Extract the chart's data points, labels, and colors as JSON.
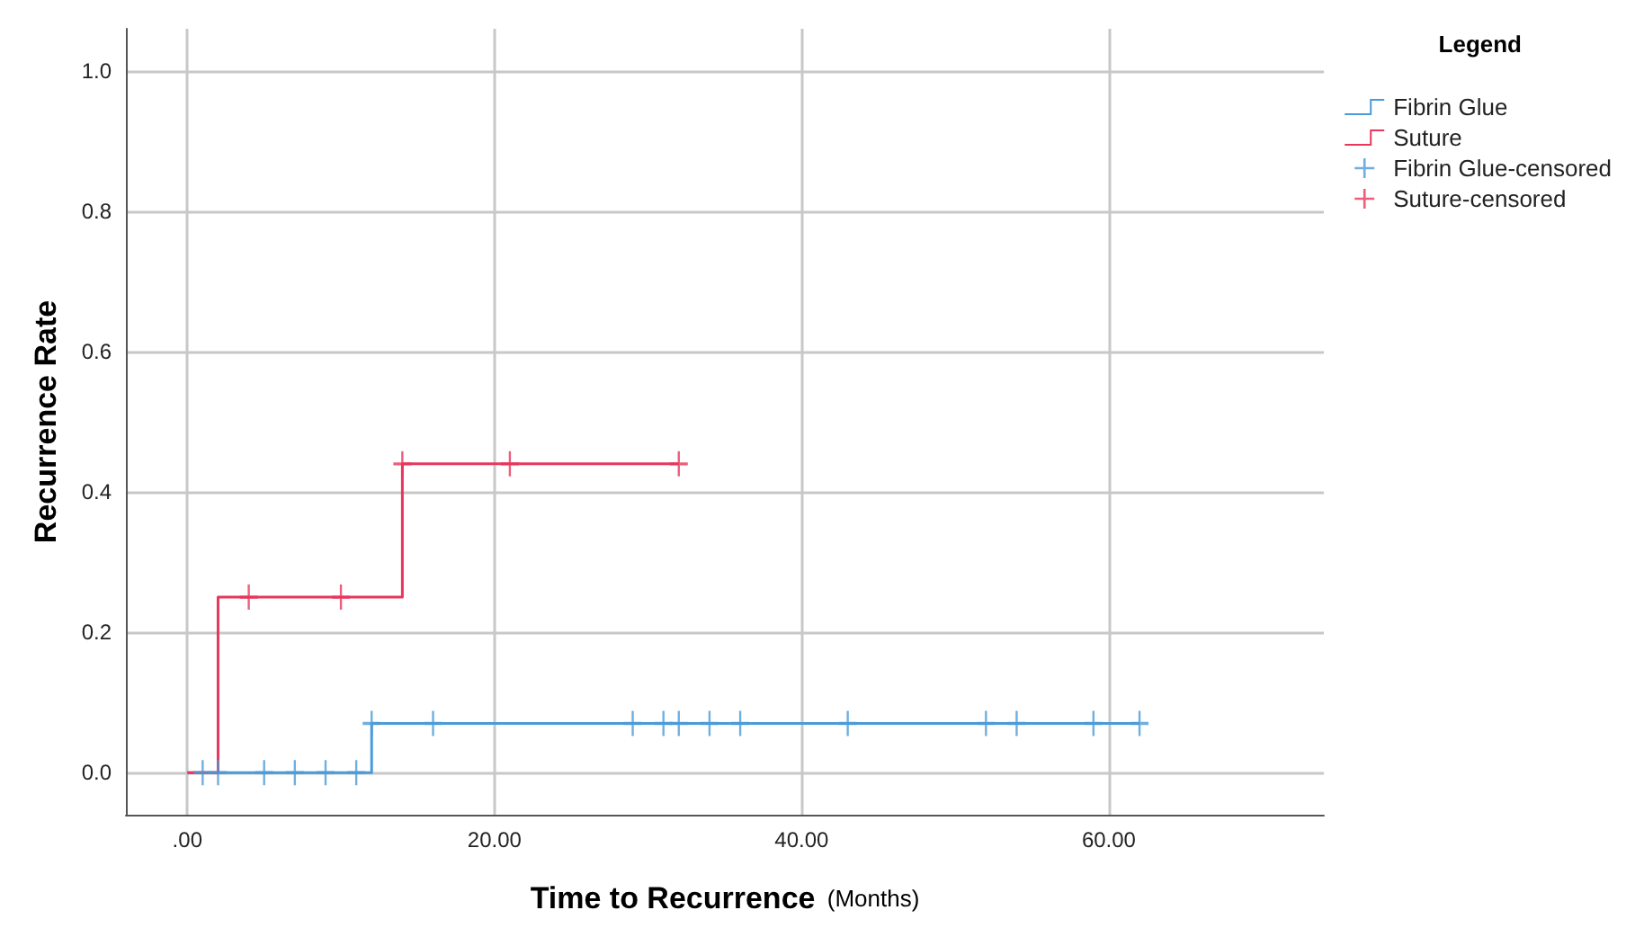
{
  "chart_data": {
    "type": "step",
    "xlabel": "Time to Recurrence (Months)",
    "ylabel": "Recurrence Rate",
    "legend_title": "Legend",
    "xlim": [
      -4,
      74
    ],
    "ylim": [
      -0.06,
      1.06
    ],
    "xticks": [
      {
        "value": 0,
        "label": ".00"
      },
      {
        "value": 20,
        "label": "20.00"
      },
      {
        "value": 40,
        "label": "40.00"
      },
      {
        "value": 60,
        "label": "60.00"
      }
    ],
    "yticks": [
      {
        "value": 0,
        "label": "0.0"
      },
      0.2,
      0.4,
      0.6,
      0.8,
      {
        "value": 1,
        "label": "1.0"
      }
    ],
    "grid": true,
    "legend": "top right",
    "line_style": "solid",
    "marker": "none",
    "series": [
      {
        "name": "Fibrin Glue",
        "color": "#4a9bd8",
        "x": [
          0,
          12,
          62
        ],
        "values": [
          0,
          0.07,
          0.07
        ]
      },
      {
        "name": "Suture",
        "color": "#e8365d",
        "x": [
          0,
          2,
          14,
          32
        ],
        "values": [
          0,
          0.25,
          0.44,
          0.44
        ]
      },
      {
        "name": "Fibrin Glue-censored",
        "type": "scatter",
        "marker": "cross",
        "color": "#4a9bd8",
        "x": [
          1,
          2,
          5,
          7,
          9,
          11,
          12,
          16,
          29,
          31,
          32,
          34,
          36,
          43,
          52,
          54,
          59,
          62
        ],
        "values": [
          0,
          0,
          0,
          0,
          0,
          0,
          0.07,
          0.07,
          0.07,
          0.07,
          0.07,
          0.07,
          0.07,
          0.07,
          0.07,
          0.07,
          0.07,
          0.07
        ]
      },
      {
        "name": "Suture-censored",
        "type": "scatter",
        "marker": "cross",
        "color": "#e8365d",
        "x": [
          4,
          10,
          14,
          21,
          32
        ],
        "values": [
          0.25,
          0.25,
          0.44,
          0.44,
          0.44
        ]
      }
    ]
  }
}
